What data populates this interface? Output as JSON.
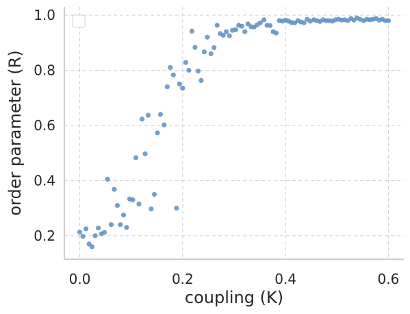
{
  "chart_data": {
    "type": "scatter",
    "xlabel": "coupling (K)",
    "ylabel": "order parameter (R)",
    "xlim": [
      -0.03,
      0.63
    ],
    "ylim": [
      0.115,
      1.03
    ],
    "xticks": [
      0.0,
      0.2,
      0.4,
      0.6
    ],
    "xtick_labels": [
      "0.0",
      "0.2",
      "0.4",
      "0.6"
    ],
    "yticks": [
      0.2,
      0.4,
      0.6,
      0.8,
      1.0
    ],
    "ytick_labels": [
      "0.2",
      "0.4",
      "0.6",
      "0.8",
      "1.0"
    ],
    "grid": true,
    "legend": "top-left",
    "marker_color": "#5b8fc1",
    "x": [
      0.0,
      0.006,
      0.012,
      0.018,
      0.024,
      0.03,
      0.036,
      0.042,
      0.048,
      0.054,
      0.061,
      0.067,
      0.073,
      0.079,
      0.085,
      0.091,
      0.097,
      0.103,
      0.109,
      0.115,
      0.121,
      0.127,
      0.133,
      0.139,
      0.145,
      0.151,
      0.157,
      0.164,
      0.17,
      0.176,
      0.182,
      0.188,
      0.194,
      0.2,
      0.206,
      0.212,
      0.218,
      0.224,
      0.23,
      0.236,
      0.242,
      0.248,
      0.255,
      0.261,
      0.267,
      0.273,
      0.279,
      0.285,
      0.291,
      0.297,
      0.303,
      0.309,
      0.315,
      0.321,
      0.327,
      0.333,
      0.339,
      0.345,
      0.351,
      0.358,
      0.364,
      0.37,
      0.376,
      0.382,
      0.388,
      0.394,
      0.4,
      0.406,
      0.412,
      0.418,
      0.424,
      0.43,
      0.436,
      0.442,
      0.448,
      0.455,
      0.461,
      0.467,
      0.473,
      0.479,
      0.485,
      0.491,
      0.497,
      0.503,
      0.509,
      0.515,
      0.521,
      0.527,
      0.533,
      0.539,
      0.545,
      0.552,
      0.558,
      0.564,
      0.57,
      0.576,
      0.582,
      0.588,
      0.594,
      0.6
    ],
    "y": [
      0.213,
      0.198,
      0.225,
      0.17,
      0.16,
      0.2,
      0.228,
      0.207,
      0.212,
      0.405,
      0.24,
      0.368,
      0.31,
      0.24,
      0.275,
      0.23,
      0.333,
      0.33,
      0.483,
      0.315,
      0.623,
      0.497,
      0.637,
      0.297,
      0.35,
      0.573,
      0.64,
      0.602,
      0.74,
      0.81,
      0.783,
      0.3,
      0.75,
      0.735,
      0.828,
      0.8,
      0.942,
      0.883,
      0.797,
      0.763,
      0.867,
      0.92,
      0.86,
      0.882,
      0.963,
      0.933,
      0.927,
      0.94,
      0.925,
      0.945,
      0.947,
      0.963,
      0.96,
      0.94,
      0.968,
      0.958,
      0.957,
      0.965,
      0.972,
      0.983,
      0.963,
      0.962,
      0.94,
      0.935,
      0.98,
      0.978,
      0.982,
      0.978,
      0.973,
      0.972,
      0.98,
      0.975,
      0.972,
      0.985,
      0.978,
      0.983,
      0.98,
      0.977,
      0.983,
      0.98,
      0.98,
      0.978,
      0.983,
      0.985,
      0.982,
      0.983,
      0.98,
      0.988,
      0.982,
      0.99,
      0.985,
      0.98,
      0.985,
      0.983,
      0.985,
      0.988,
      0.982,
      0.985,
      0.98,
      0.98
    ]
  }
}
